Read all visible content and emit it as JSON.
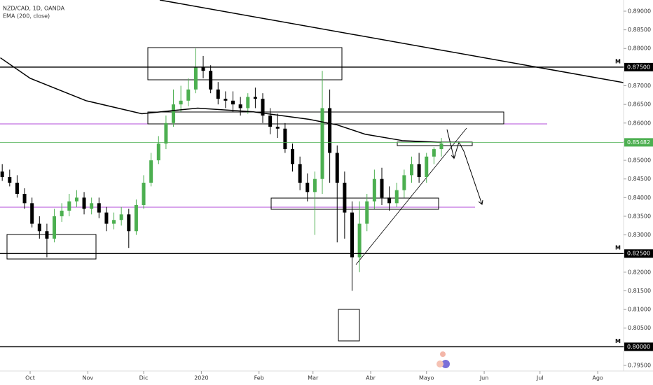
{
  "chart_data": {
    "type": "candlestick",
    "title": "NZD/CAD, 1D, OANDA",
    "indicator": "EMA (200, close)",
    "up_color": "#4caf50",
    "down_color": "#000000",
    "ema_color": "#000000",
    "xlim": [
      -16.2,
      318.9
    ],
    "xticks": [
      {
        "value": 0,
        "label": "Oct"
      },
      {
        "value": 31,
        "label": "Nov"
      },
      {
        "value": 61,
        "label": "Dic"
      },
      {
        "value": 92,
        "label": "2020"
      },
      {
        "value": 123,
        "label": "Feb"
      },
      {
        "value": 152,
        "label": "Mar"
      },
      {
        "value": 183,
        "label": "Abr"
      },
      {
        "value": 213,
        "label": "Mayo"
      },
      {
        "value": 244,
        "label": "Jun"
      },
      {
        "value": 274,
        "label": "Jul"
      },
      {
        "value": 305,
        "label": "Ago"
      }
    ],
    "ylim": [
      0.7935,
      0.893
    ],
    "yticks": [
      {
        "value": 0.795,
        "label": "0.79500"
      },
      {
        "value": 0.8,
        "label": "0.80000"
      },
      {
        "value": 0.805,
        "label": "0.80500"
      },
      {
        "value": 0.81,
        "label": "0.81000"
      },
      {
        "value": 0.815,
        "label": "0.81500"
      },
      {
        "value": 0.82,
        "label": "0.82000"
      },
      {
        "value": 0.825,
        "label": "0.82500"
      },
      {
        "value": 0.83,
        "label": "0.83000"
      },
      {
        "value": 0.835,
        "label": "0.83500"
      },
      {
        "value": 0.84,
        "label": "0.84000"
      },
      {
        "value": 0.845,
        "label": "0.84500"
      },
      {
        "value": 0.85,
        "label": "0.85000"
      },
      {
        "value": 0.855,
        "label": "0.85500"
      },
      {
        "value": 0.86,
        "label": "0.86000"
      },
      {
        "value": 0.865,
        "label": "0.86500"
      },
      {
        "value": 0.87,
        "label": "0.87000"
      },
      {
        "value": 0.875,
        "label": "0.87500"
      },
      {
        "value": 0.88,
        "label": "0.88000"
      },
      {
        "value": 0.885,
        "label": "0.88500"
      },
      {
        "value": 0.89,
        "label": "0.89000"
      }
    ],
    "levels": [
      {
        "value": 0.875,
        "label": "0.87500",
        "marker": "M",
        "color": "#000000"
      },
      {
        "value": 0.825,
        "label": "0.82500",
        "marker": "M",
        "color": "#000000"
      },
      {
        "value": 0.8,
        "label": "0.80000",
        "marker": "M",
        "color": "#000000"
      }
    ],
    "last_price": {
      "value": 0.85482,
      "label": "0.85482",
      "color": "#4caf50"
    },
    "candles": {
      "x": [
        -15,
        -11,
        -7,
        -3,
        1,
        5,
        9,
        13,
        17,
        21,
        25,
        29,
        33,
        37,
        41,
        45,
        49,
        53,
        57,
        61,
        65,
        69,
        73,
        77,
        81,
        85,
        89,
        93,
        97,
        101,
        105,
        109,
        113,
        117,
        121,
        125,
        129,
        133,
        137,
        141,
        145,
        149,
        153,
        157,
        161,
        165,
        169,
        173,
        177,
        181,
        185,
        189,
        193,
        197,
        201,
        205,
        209,
        213,
        217,
        221
      ],
      "open": [
        0.847,
        0.8455,
        0.844,
        0.841,
        0.8385,
        0.833,
        0.831,
        0.829,
        0.835,
        0.8365,
        0.839,
        0.84,
        0.837,
        0.8385,
        0.836,
        0.833,
        0.834,
        0.8355,
        0.831,
        0.838,
        0.844,
        0.85,
        0.8545,
        0.86,
        0.865,
        0.866,
        0.869,
        0.875,
        0.874,
        0.869,
        0.8665,
        0.866,
        0.865,
        0.864,
        0.867,
        0.8665,
        0.862,
        0.859,
        0.8585,
        0.853,
        0.849,
        0.844,
        0.8415,
        0.845,
        0.864,
        0.852,
        0.844,
        0.836,
        0.824,
        0.833,
        0.839,
        0.845,
        0.84,
        0.8385,
        0.842,
        0.846,
        0.849,
        0.8455,
        0.851,
        0.853
      ],
      "high": [
        0.849,
        0.8475,
        0.846,
        0.8425,
        0.84,
        0.835,
        0.833,
        0.837,
        0.8385,
        0.841,
        0.842,
        0.8415,
        0.84,
        0.84,
        0.8375,
        0.836,
        0.8375,
        0.837,
        0.8395,
        0.846,
        0.852,
        0.8565,
        0.862,
        0.869,
        0.87,
        0.872,
        0.88,
        0.878,
        0.8755,
        0.871,
        0.8685,
        0.8685,
        0.867,
        0.868,
        0.8695,
        0.868,
        0.864,
        0.8625,
        0.86,
        0.8545,
        0.851,
        0.8465,
        0.847,
        0.874,
        0.869,
        0.854,
        0.847,
        0.839,
        0.839,
        0.841,
        0.8475,
        0.848,
        0.843,
        0.844,
        0.8475,
        0.851,
        0.852,
        0.852,
        0.8535,
        0.856
      ],
      "low": [
        0.8445,
        0.843,
        0.84,
        0.837,
        0.832,
        0.829,
        0.824,
        0.828,
        0.8335,
        0.835,
        0.8375,
        0.8355,
        0.8355,
        0.8345,
        0.831,
        0.8315,
        0.8325,
        0.8265,
        0.83,
        0.837,
        0.843,
        0.849,
        0.853,
        0.859,
        0.863,
        0.8645,
        0.868,
        0.872,
        0.868,
        0.865,
        0.864,
        0.863,
        0.862,
        0.8625,
        0.864,
        0.86,
        0.857,
        0.856,
        0.852,
        0.847,
        0.842,
        0.839,
        0.83,
        0.841,
        0.844,
        0.828,
        0.829,
        0.815,
        0.82,
        0.831,
        0.837,
        0.838,
        0.8365,
        0.8375,
        0.84,
        0.844,
        0.844,
        0.844,
        0.849,
        0.851
      ],
      "close": [
        0.8455,
        0.844,
        0.841,
        0.8385,
        0.833,
        0.831,
        0.829,
        0.835,
        0.8365,
        0.839,
        0.84,
        0.837,
        0.8385,
        0.836,
        0.833,
        0.834,
        0.8355,
        0.831,
        0.838,
        0.844,
        0.85,
        0.8545,
        0.86,
        0.865,
        0.866,
        0.869,
        0.875,
        0.874,
        0.869,
        0.8665,
        0.866,
        0.865,
        0.864,
        0.867,
        0.8665,
        0.862,
        0.859,
        0.8585,
        0.853,
        0.849,
        0.844,
        0.8415,
        0.845,
        0.864,
        0.852,
        0.844,
        0.836,
        0.824,
        0.833,
        0.839,
        0.845,
        0.84,
        0.8385,
        0.842,
        0.846,
        0.849,
        0.8455,
        0.851,
        0.853,
        0.8545
      ]
    },
    "ema": {
      "x": [
        -16,
        0,
        30,
        60,
        90,
        120,
        150,
        165,
        180,
        200,
        221
      ],
      "values": [
        0.8775,
        0.872,
        0.866,
        0.8625,
        0.864,
        0.863,
        0.861,
        0.8595,
        0.857,
        0.8553,
        0.8548
      ]
    }
  }
}
